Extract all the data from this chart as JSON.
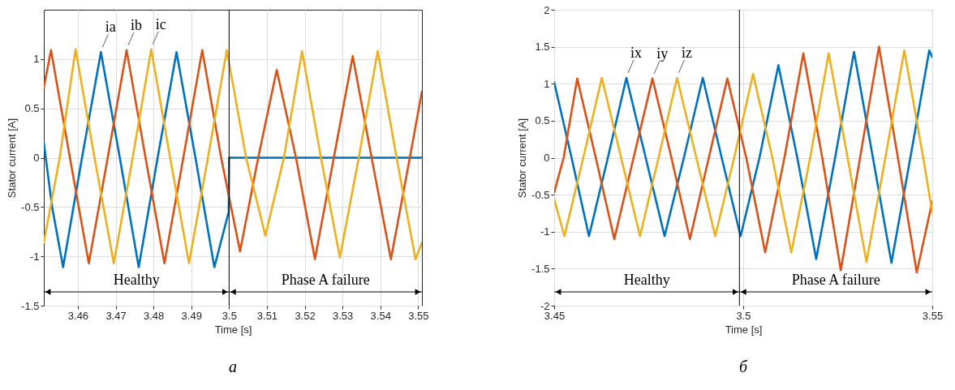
{
  "chart_data": [
    {
      "type": "line",
      "xlabel": "Time [s]",
      "ylabel": "Stator current [A]",
      "xlim": [
        3.451,
        3.551
      ],
      "ylim": [
        -1.5,
        1.5
      ],
      "xticks": [
        3.46,
        3.47,
        3.48,
        3.49,
        3.5,
        3.51,
        3.52,
        3.53,
        3.54,
        3.55
      ],
      "yticks": [
        -1.5,
        -1,
        -0.5,
        0,
        0.5,
        1
      ],
      "grid": true,
      "series": [
        {
          "name": "ia",
          "color": "#0072bd",
          "x": [
            3.451,
            3.4532,
            3.4561,
            3.4611,
            3.4661,
            3.4711,
            3.4761,
            3.4811,
            3.4861,
            3.4911,
            3.4961,
            3.4999,
            3.5,
            3.551
          ],
          "values": [
            0.15,
            -0.5,
            -1.11,
            0,
            1.07,
            0,
            -1.11,
            0,
            1.07,
            0,
            -1.11,
            -0.55,
            0,
            0
          ]
        },
        {
          "name": "ib",
          "color": "#d95319",
          "x": [
            3.451,
            3.4529,
            3.4579,
            3.4629,
            3.4679,
            3.4729,
            3.4779,
            3.4829,
            3.4879,
            3.4929,
            3.4979,
            3.5029,
            3.5077,
            3.5126,
            3.5177,
            3.5227,
            3.5277,
            3.5327,
            3.5377,
            3.5428,
            3.5478,
            3.551
          ],
          "values": [
            0.71,
            1.09,
            0,
            -1.07,
            0,
            1.09,
            0,
            -1.07,
            0,
            1.09,
            0,
            -0.95,
            0,
            0.89,
            0,
            -1.03,
            0,
            1.03,
            0,
            -1.03,
            0,
            0.67
          ]
        },
        {
          "name": "ic",
          "color": "#edb120",
          "x": [
            3.451,
            3.4552,
            3.4594,
            3.4644,
            3.4695,
            3.4745,
            3.4794,
            3.4844,
            3.4894,
            3.4944,
            3.4994,
            3.5045,
            3.5096,
            3.5145,
            3.5193,
            3.5243,
            3.5293,
            3.5343,
            3.5393,
            3.5443,
            3.5493,
            3.551
          ],
          "values": [
            -0.86,
            0,
            1.1,
            0,
            -1.07,
            0,
            1.1,
            0,
            -1.07,
            0,
            1.09,
            0,
            -0.79,
            0,
            1.08,
            0,
            -1.01,
            0,
            1.08,
            0,
            -1.03,
            -0.86
          ]
        }
      ],
      "ref_lines": [
        {
          "axis": "x",
          "value": 3.5,
          "color": "#000000"
        }
      ],
      "annotations": [
        "а",
        "Healthy",
        "Phase A failure"
      ]
    },
    {
      "type": "line",
      "xlabel": "Time [s]",
      "ylabel": "Stator current [A]",
      "xlim": [
        3.45,
        3.55
      ],
      "ylim": [
        -2,
        2
      ],
      "xticks": [
        3.45,
        3.5,
        3.55
      ],
      "yticks": [
        -2,
        -1.5,
        -1,
        -0.5,
        0,
        0.5,
        1,
        1.5,
        2
      ],
      "grid": true,
      "series": [
        {
          "name": "ix",
          "color": "#0072bd",
          "x": [
            3.45,
            3.4546,
            3.4592,
            3.4642,
            3.4691,
            3.4742,
            3.4792,
            3.4843,
            3.4893,
            3.4943,
            3.4993,
            3.5043,
            3.5093,
            3.5143,
            3.5193,
            3.5243,
            3.5293,
            3.5343,
            3.5392,
            3.5442,
            3.5492,
            3.55
          ],
          "values": [
            1.02,
            0,
            -1.06,
            0,
            1.08,
            0,
            -1.06,
            0,
            1.08,
            0,
            -1.06,
            0,
            1.25,
            0,
            -1.37,
            0,
            1.43,
            0,
            -1.42,
            0,
            1.45,
            1.36
          ]
        },
        {
          "name": "iy",
          "color": "#d95319",
          "x": [
            3.45,
            3.4525,
            3.4561,
            3.461,
            3.4659,
            3.471,
            3.476,
            3.481,
            3.4859,
            3.4909,
            3.4958,
            3.5008,
            3.5058,
            3.5109,
            3.5159,
            3.5209,
            3.5258,
            3.5309,
            3.5359,
            3.5409,
            3.5459,
            3.55
          ],
          "values": [
            -0.47,
            0,
            1.07,
            0,
            -1.1,
            0,
            1.07,
            0,
            -1.1,
            0,
            1.07,
            0,
            -1.28,
            0,
            1.41,
            0,
            -1.52,
            0,
            1.5,
            0,
            -1.55,
            -0.59
          ]
        },
        {
          "name": "iz",
          "color": "#edb120",
          "x": [
            3.45,
            3.4527,
            3.4577,
            3.4626,
            3.4677,
            3.4727,
            3.4776,
            3.4825,
            3.4876,
            3.4926,
            3.4976,
            3.5026,
            3.5077,
            3.5127,
            3.5177,
            3.5226,
            3.5276,
            3.5326,
            3.5376,
            3.5426,
            3.5476,
            3.55
          ],
          "values": [
            -0.56,
            -1.06,
            0,
            1.08,
            0,
            -1.06,
            0,
            1.08,
            0,
            -1.06,
            0,
            1.13,
            0,
            -1.28,
            0,
            1.41,
            0,
            -1.41,
            0,
            1.45,
            0,
            -0.74
          ]
        }
      ],
      "ref_lines": [
        {
          "axis": "x",
          "value": 3.499,
          "color": "#000000"
        }
      ],
      "annotations": [
        "б",
        "Healthy",
        "Phase A failure"
      ]
    }
  ]
}
